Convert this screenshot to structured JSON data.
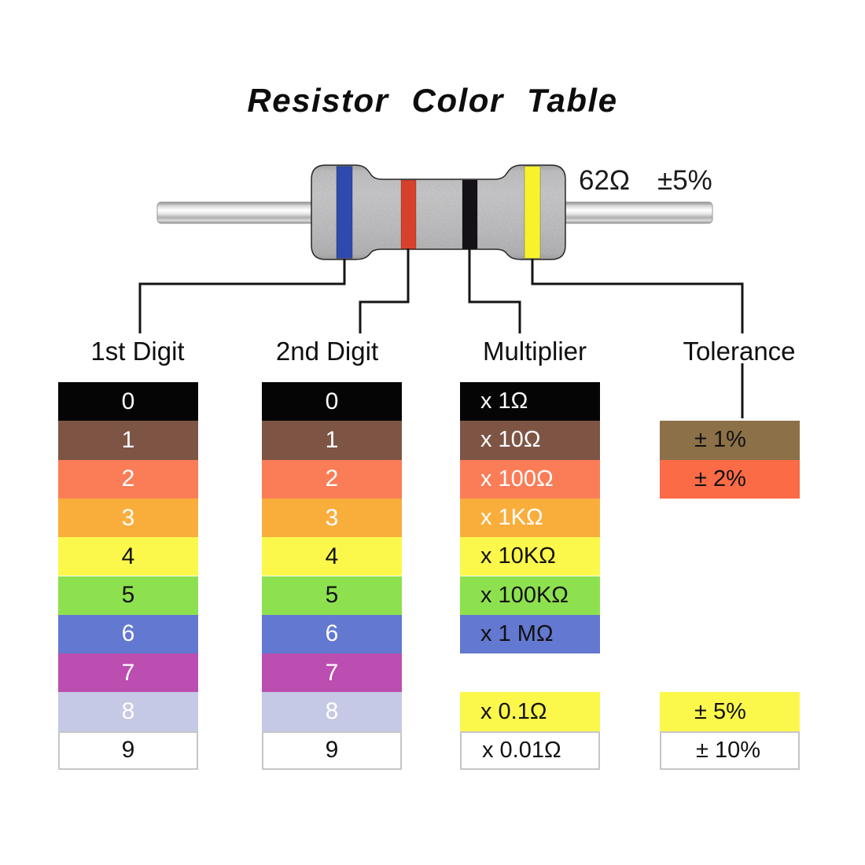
{
  "title": "Resistor Color Table",
  "resistor": {
    "value_label": "62Ω",
    "tolerance_label": "±5%",
    "bands": [
      {
        "name": "blue",
        "color": "#2E4AAF"
      },
      {
        "name": "red",
        "color": "#D7402B"
      },
      {
        "name": "black",
        "color": "#141016"
      },
      {
        "name": "yellow",
        "color": "#F7F22B"
      }
    ]
  },
  "columns": [
    {
      "label": "1st Digit",
      "rows": [
        {
          "slot": 0,
          "text": "0",
          "bg": "#050505",
          "fg": "#FFFFFF"
        },
        {
          "slot": 1,
          "text": "1",
          "bg": "#7E5545",
          "fg": "#FFFFFF"
        },
        {
          "slot": 2,
          "text": "2",
          "bg": "#FB7D57",
          "fg": "#FFFFFF"
        },
        {
          "slot": 3,
          "text": "3",
          "bg": "#F9AE3C",
          "fg": "#FFFFFF"
        },
        {
          "slot": 4,
          "text": "4",
          "bg": "#FCF84B",
          "fg": "#121212"
        },
        {
          "slot": 5,
          "text": "5",
          "bg": "#8DE14E",
          "fg": "#121212"
        },
        {
          "slot": 6,
          "text": "6",
          "bg": "#6378D0",
          "fg": "#FFFFFF"
        },
        {
          "slot": 7,
          "text": "7",
          "bg": "#BB4EB0",
          "fg": "#FFFFFF"
        },
        {
          "slot": 8,
          "text": "8",
          "bg": "#C5C9E5",
          "fg": "#FFFFFF"
        },
        {
          "slot": 9,
          "text": "9",
          "bg": "#FFFFFF",
          "fg": "#121212",
          "border": "#C6C6C6"
        }
      ]
    },
    {
      "label": "2nd Digit",
      "rows": [
        {
          "slot": 0,
          "text": "0",
          "bg": "#050505",
          "fg": "#FFFFFF"
        },
        {
          "slot": 1,
          "text": "1",
          "bg": "#7E5545",
          "fg": "#FFFFFF"
        },
        {
          "slot": 2,
          "text": "2",
          "bg": "#FB7D57",
          "fg": "#FFFFFF"
        },
        {
          "slot": 3,
          "text": "3",
          "bg": "#F9AE3C",
          "fg": "#FFFFFF"
        },
        {
          "slot": 4,
          "text": "4",
          "bg": "#FCF84B",
          "fg": "#121212"
        },
        {
          "slot": 5,
          "text": "5",
          "bg": "#8DE14E",
          "fg": "#121212"
        },
        {
          "slot": 6,
          "text": "6",
          "bg": "#6378D0",
          "fg": "#FFFFFF"
        },
        {
          "slot": 7,
          "text": "7",
          "bg": "#BB4EB0",
          "fg": "#FFFFFF"
        },
        {
          "slot": 8,
          "text": "8",
          "bg": "#C5C9E5",
          "fg": "#FFFFFF"
        },
        {
          "slot": 9,
          "text": "9",
          "bg": "#FFFFFF",
          "fg": "#121212",
          "border": "#C6C6C6"
        }
      ]
    },
    {
      "label": "Multiplier",
      "rows": [
        {
          "slot": 0,
          "text": "x 1Ω",
          "bg": "#050505",
          "fg": "#FFFFFF"
        },
        {
          "slot": 1,
          "text": "x 10Ω",
          "bg": "#7E5545",
          "fg": "#FFFFFF"
        },
        {
          "slot": 2,
          "text": "x 100Ω",
          "bg": "#FB7D57",
          "fg": "#FFFFFF"
        },
        {
          "slot": 3,
          "text": "x 1KΩ",
          "bg": "#F9AE3C",
          "fg": "#FFFFFF"
        },
        {
          "slot": 4,
          "text": "x 10KΩ",
          "bg": "#FCF84B",
          "fg": "#121212"
        },
        {
          "slot": 5,
          "text": "x 100KΩ",
          "bg": "#8DE14E",
          "fg": "#121212"
        },
        {
          "slot": 6,
          "text": "x 1 MΩ",
          "bg": "#6378D0",
          "fg": "#121212"
        },
        {
          "slot": 8,
          "text": "x 0.1Ω",
          "bg": "#FCF84B",
          "fg": "#121212"
        },
        {
          "slot": 9,
          "text": "x 0.01Ω",
          "bg": "#FFFFFF",
          "fg": "#121212",
          "border": "#C6C6C6"
        }
      ]
    },
    {
      "label": "Tolerance",
      "rows": [
        {
          "slot": 1,
          "text": "± 1%",
          "bg": "#8C7048",
          "fg": "#121212"
        },
        {
          "slot": 2,
          "text": "± 2%",
          "bg": "#FB6B46",
          "fg": "#121212"
        },
        {
          "slot": 8,
          "text": "± 5%",
          "bg": "#FCF84B",
          "fg": "#121212"
        },
        {
          "slot": 9,
          "text": "± 10%",
          "bg": "#FFFFFF",
          "fg": "#121212",
          "border": "#C6C6C6"
        }
      ]
    }
  ]
}
